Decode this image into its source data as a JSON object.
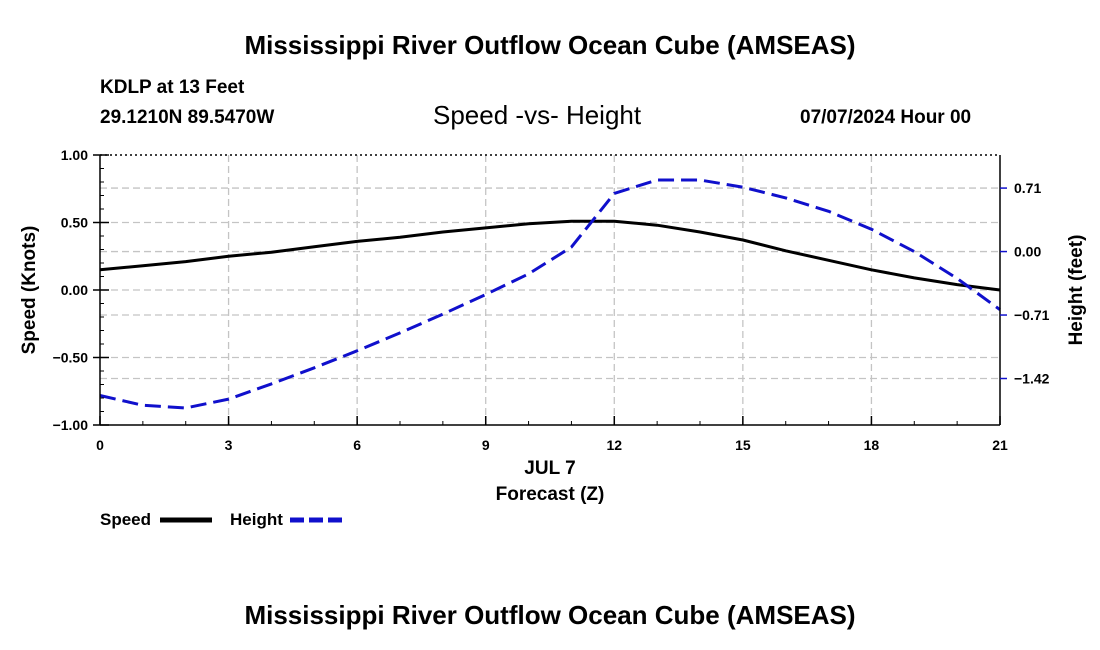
{
  "header": {
    "title": "Mississippi River Outflow Ocean Cube (AMSEAS)",
    "station": "KDLP at 13 Feet",
    "location": "29.1210N  89.5470W",
    "datetime": "07/07/2024 Hour 00",
    "footer_title": "Mississippi River Outflow Ocean Cube (AMSEAS)"
  },
  "chart_data": {
    "type": "line",
    "title": "Speed -vs- Height",
    "xlabel": "Forecast (Z)",
    "xdate_label": "JUL 7",
    "ylabel": "Speed (Knots)",
    "y2label": "Height (feet)",
    "xlim": [
      0,
      21
    ],
    "ylim": [
      -1.0,
      1.0
    ],
    "y2lim": [
      -1.94,
      1.08
    ],
    "xticks": [
      0,
      3,
      6,
      9,
      12,
      15,
      18,
      21
    ],
    "xtick_labels": [
      "0",
      "3",
      "6",
      "9",
      "12",
      "15",
      "18",
      "21"
    ],
    "yticks": [
      -1.0,
      -0.5,
      0.0,
      0.5,
      1.0
    ],
    "ytick_labels": [
      "−1.00",
      "−0.50",
      "0.00",
      "0.50",
      "1.00"
    ],
    "y2ticks": [
      -1.42,
      -0.71,
      0.0,
      0.71
    ],
    "y2tick_labels": [
      "−1.42",
      "−0.71",
      "0.00",
      "0.71"
    ],
    "grid": true,
    "legend_position": "bottom-left",
    "series": [
      {
        "name": "Speed",
        "axis": "left",
        "color": "#000000",
        "style": "solid",
        "x": [
          0,
          1,
          2,
          3,
          4,
          5,
          6,
          7,
          8,
          9,
          10,
          11,
          12,
          13,
          14,
          15,
          16,
          17,
          18,
          19,
          20,
          21
        ],
        "values": [
          0.15,
          0.18,
          0.21,
          0.25,
          0.28,
          0.32,
          0.36,
          0.39,
          0.43,
          0.46,
          0.49,
          0.51,
          0.51,
          0.48,
          0.43,
          0.37,
          0.29,
          0.22,
          0.15,
          0.09,
          0.04,
          0.0
        ]
      },
      {
        "name": "Height",
        "axis": "right",
        "color": "#1010cc",
        "style": "dashed",
        "x": [
          0,
          1,
          2,
          3,
          4,
          5,
          6,
          7,
          8,
          9,
          10,
          11,
          12,
          13,
          14,
          15,
          16,
          17,
          18,
          19,
          20,
          21
        ],
        "values": [
          -1.61,
          -1.72,
          -1.75,
          -1.65,
          -1.48,
          -1.3,
          -1.11,
          -0.91,
          -0.7,
          -0.48,
          -0.25,
          0.05,
          0.65,
          0.8,
          0.8,
          0.72,
          0.6,
          0.45,
          0.25,
          0.0,
          -0.3,
          -0.65
        ]
      }
    ]
  }
}
